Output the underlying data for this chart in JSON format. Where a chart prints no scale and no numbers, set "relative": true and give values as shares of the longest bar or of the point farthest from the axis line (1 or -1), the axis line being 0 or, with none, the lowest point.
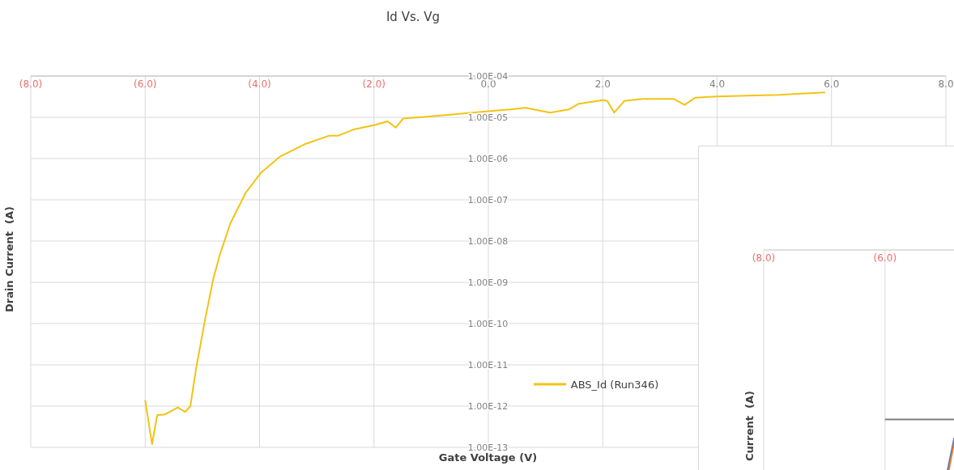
{
  "chart_data": [
    {
      "type": "line",
      "title": "Id Vs. Vg",
      "xlabel": "Gate Voltage (V)",
      "ylabel": "Drain Current  (A)",
      "log": "y",
      "grid": true,
      "legend": "bottom",
      "marker": "none",
      "xlim": [
        -8,
        8
      ],
      "xticks": [
        {
          "value": -8,
          "label": "(8.0)"
        },
        {
          "value": -6,
          "label": "(6.0)"
        },
        {
          "value": -4,
          "label": "(4.0)"
        },
        {
          "value": -2,
          "label": "(2.0)"
        },
        {
          "value": 0,
          "label": "0.0"
        },
        {
          "value": 2,
          "label": "2.0"
        },
        {
          "value": 4,
          "label": "4.0"
        },
        {
          "value": 6,
          "label": "6.0"
        },
        {
          "value": 8,
          "label": "8.0"
        }
      ],
      "ylim": [
        1e-13,
        0.0001
      ],
      "yticks": [
        {
          "value": 1e-13,
          "label": "1.00E-13"
        },
        {
          "value": 1e-12,
          "label": "1.00E-12"
        },
        {
          "value": 1e-11,
          "label": "1.00E-11"
        },
        {
          "value": 1e-10,
          "label": "1.00E-10"
        },
        {
          "value": 1e-09,
          "label": "1.00E-09"
        },
        {
          "value": 1e-08,
          "label": "1.00E-08"
        },
        {
          "value": 1e-07,
          "label": "1.00E-07"
        },
        {
          "value": 1e-06,
          "label": "1.00E-06"
        },
        {
          "value": 1e-05,
          "label": "1.00E-05"
        },
        {
          "value": 0.0001,
          "label": "1.00E-04"
        }
      ],
      "series": [
        {
          "name": "ABS_Id (Run346)",
          "color": "#f2c314",
          "x": [
            -6.0,
            -5.88,
            -5.79,
            -5.65,
            -5.43,
            -5.3,
            -5.21,
            -5.11,
            -4.95,
            -4.81,
            -4.7,
            -4.51,
            -4.24,
            -3.97,
            -3.65,
            -3.22,
            -2.78,
            -2.62,
            -2.35,
            -1.97,
            -1.76,
            -1.62,
            -1.49,
            -0.95,
            0.0,
            0.38,
            0.65,
            1.08,
            1.41,
            1.57,
            2.0,
            2.08,
            2.2,
            2.38,
            2.7,
            3.24,
            3.43,
            3.62,
            4.0,
            5.08,
            5.89
          ],
          "values": [
            1.4e-12,
            1.2e-13,
            6e-13,
            6.3e-13,
            9.3e-13,
            7.2e-13,
            1e-12,
            8e-12,
            1.3e-10,
            1.2e-09,
            4.4e-09,
            2.7e-08,
            1.5e-07,
            4.6e-07,
            1.1e-06,
            2.2e-06,
            3.6e-06,
            3.6e-06,
            5.1e-06,
            6.6e-06,
            8e-06,
            5.6e-06,
            9.3e-06,
            1.07e-05,
            1.4e-05,
            1.55e-05,
            1.7e-05,
            1.3e-05,
            1.55e-05,
            2.1e-05,
            2.6e-05,
            2.5e-05,
            1.3e-05,
            2.5e-05,
            2.8e-05,
            2.8e-05,
            2e-05,
            3e-05,
            3.2e-05,
            3.5e-05,
            4e-05
          ]
        }
      ]
    },
    {
      "type": "line",
      "ylabel": "Current  (A)",
      "relative": true,
      "grid": "x",
      "marker": "none",
      "tick_labels": "x",
      "xlim": [
        -8,
        -4.85
      ],
      "xticks": [
        {
          "value": -8,
          "label": "(8.0)"
        },
        {
          "value": -6,
          "label": "(6.0)"
        }
      ],
      "series": [
        {
          "color": "#7f7f7f",
          "x": [
            -6,
            -4.85
          ],
          "values": [
            1,
            1
          ]
        },
        {
          "color": "#4472c4",
          "x": [
            -4.97,
            -4.86
          ],
          "values": [
            0,
            0.64
          ]
        },
        {
          "color": "#ed7d31",
          "x": [
            -4.95,
            -4.85
          ],
          "values": [
            0,
            0.62
          ]
        }
      ]
    }
  ]
}
